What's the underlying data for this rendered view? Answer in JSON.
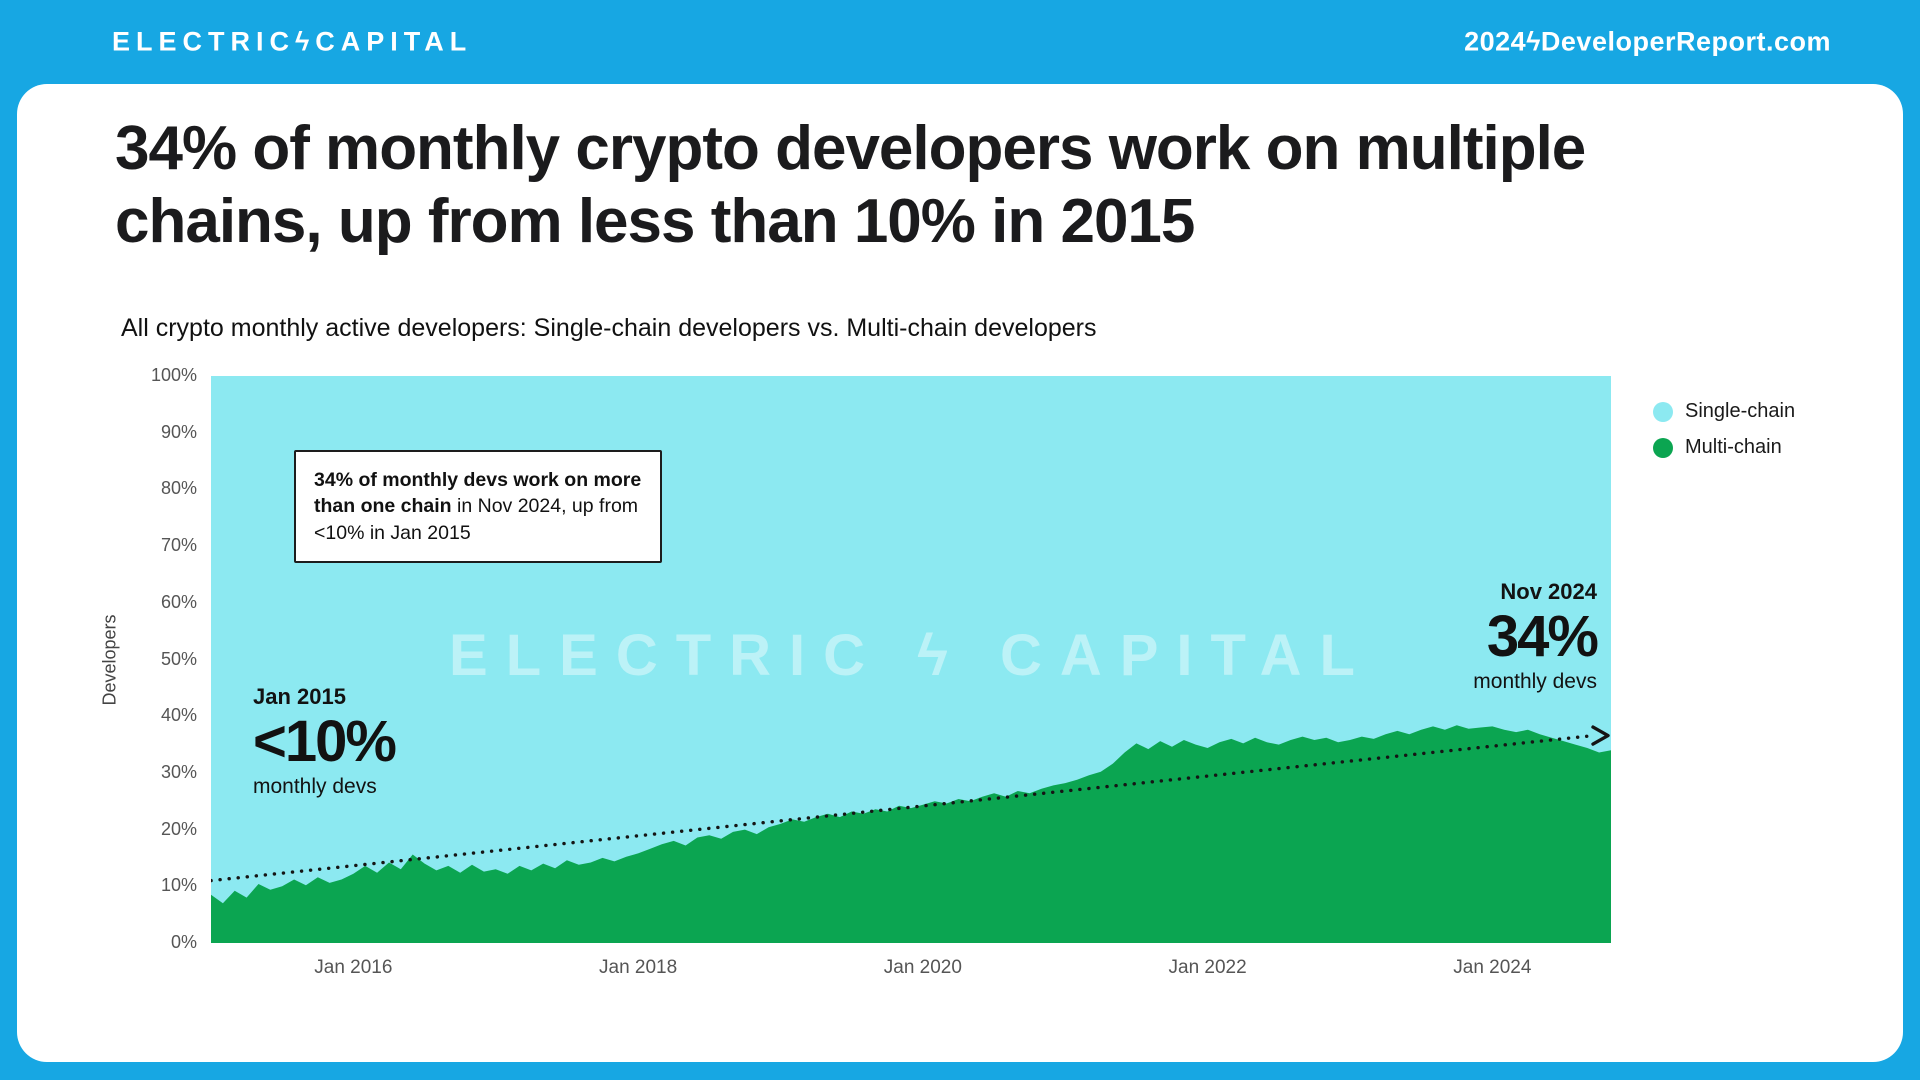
{
  "colors": {
    "page_bg": "#17a7e3",
    "title_text": "#1b1b1d"
  },
  "header": {
    "logo": "ELECTRICϟCAPITAL",
    "site": "2024ϟDeveloperReport.com"
  },
  "title": "34% of monthly crypto developers work on multiple chains, up from less than 10% in 2015",
  "subtitle": "All crypto monthly active developers: Single-chain developers vs. Multi-chain developers",
  "ylabel": "Developers",
  "watermark": "ELECTRIC ϟ CAPITAL",
  "annotation_box": {
    "bold": "34% of monthly devs work on more than one chain",
    "rest": " in Nov 2024, up from <10% in Jan 2015"
  },
  "callout_left": {
    "date": "Jan 2015",
    "value": "<10%",
    "caption": "monthly devs"
  },
  "callout_right": {
    "date": "Nov 2024",
    "value": "34%",
    "caption": "monthly devs"
  },
  "legend": [
    {
      "label": "Single-chain",
      "color": "#8ce9f1"
    },
    {
      "label": "Multi-chain",
      "color": "#0ba551"
    }
  ],
  "chart_data": {
    "type": "area",
    "stacked_percent": true,
    "title": "All crypto monthly active developers: Single-chain developers vs. Multi-chain developers",
    "xlabel": "",
    "ylabel": "Developers",
    "ylim": [
      0,
      100
    ],
    "grid": false,
    "legend_position": "right",
    "series_colors": {
      "single": "#8ce9f1",
      "multi": "#0ba551"
    },
    "x_start": "Jan 2015",
    "x_end": "Nov 2024",
    "x_tick_labels": [
      "Jan 2016",
      "Jan 2018",
      "Jan 2020",
      "Jan 2022",
      "Jan 2024"
    ],
    "x_tick_month_index": [
      12,
      36,
      60,
      84,
      108
    ],
    "y_tick_labels": [
      "0%",
      "10%",
      "20%",
      "30%",
      "40%",
      "50%",
      "60%",
      "70%",
      "80%",
      "90%",
      "100%"
    ],
    "series_note": "multi_chain_pct is the monthly share (%) of multi-chain developers, Jan 2015 to Nov 2024; single-chain share = 100 - multi_chain_pct",
    "multi_chain_pct": [
      8.5,
      7.0,
      9.2,
      8.0,
      10.4,
      9.4,
      10.0,
      11.2,
      10.2,
      11.6,
      10.6,
      11.2,
      12.2,
      13.6,
      12.4,
      14.2,
      13.0,
      15.6,
      14.0,
      12.8,
      13.6,
      12.4,
      13.8,
      12.6,
      13.0,
      12.2,
      13.6,
      12.8,
      14.0,
      13.2,
      14.6,
      13.8,
      14.2,
      15.0,
      14.4,
      15.2,
      15.8,
      16.6,
      17.4,
      18.0,
      17.2,
      18.6,
      19.0,
      18.4,
      19.6,
      20.0,
      19.2,
      20.4,
      21.0,
      21.8,
      21.4,
      22.2,
      22.8,
      22.2,
      23.2,
      22.8,
      23.6,
      23.2,
      24.2,
      23.8,
      24.4,
      25.0,
      24.6,
      25.4,
      25.0,
      25.8,
      26.4,
      25.8,
      26.8,
      26.4,
      27.2,
      27.8,
      28.2,
      28.8,
      29.6,
      30.2,
      31.6,
      33.6,
      35.2,
      34.2,
      35.6,
      34.6,
      35.8,
      35.0,
      34.4,
      35.4,
      36.0,
      35.2,
      36.2,
      35.4,
      35.0,
      35.8,
      36.4,
      35.8,
      36.2,
      35.4,
      35.8,
      36.4,
      36.0,
      36.8,
      37.4,
      36.8,
      37.6,
      38.2,
      37.6,
      38.4,
      37.8,
      38.0,
      38.2,
      37.6,
      37.2,
      37.6,
      36.8,
      36.2,
      35.6,
      35.0,
      34.4,
      33.6,
      34.0
    ],
    "trendline": {
      "style": "dotted",
      "start_pct": 11,
      "end_pct": 36.5,
      "arrow": true
    }
  }
}
